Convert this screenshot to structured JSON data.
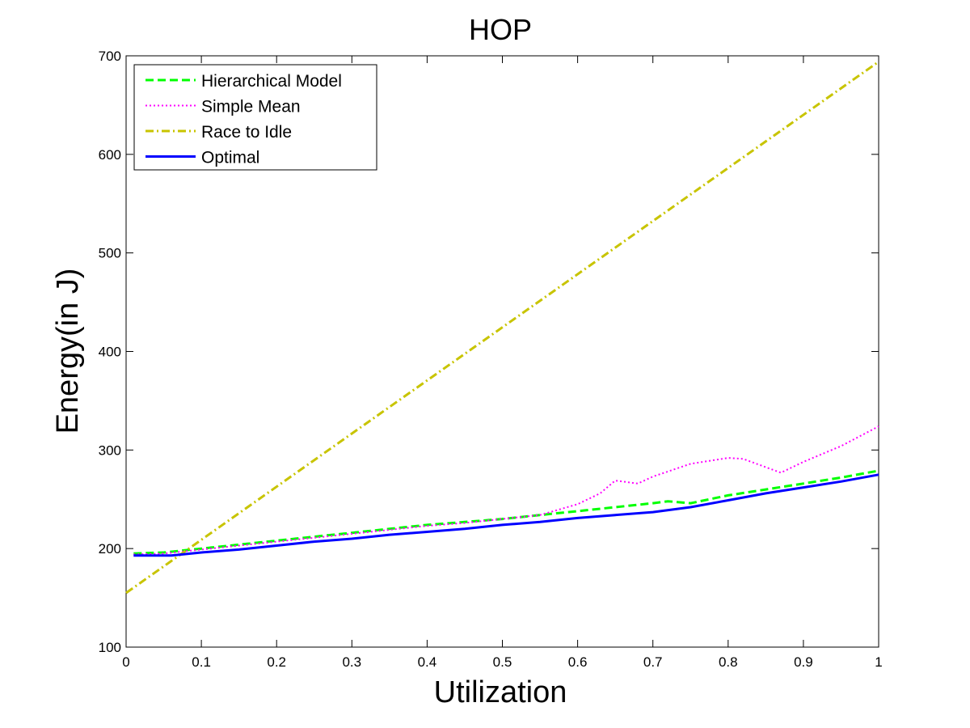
{
  "chart_data": {
    "type": "line",
    "title": "HOP",
    "xlabel": "Utilization",
    "ylabel": "Energy(in J)",
    "xlim": [
      0,
      1
    ],
    "ylim": [
      100,
      700
    ],
    "xticks": [
      0,
      0.1,
      0.2,
      0.3,
      0.4,
      0.5,
      0.6,
      0.7,
      0.8,
      0.9,
      1
    ],
    "xtick_labels": [
      "0",
      "0.1",
      "0.2",
      "0.3",
      "0.4",
      "0.5",
      "0.6",
      "0.7",
      "0.8",
      "0.9",
      "1"
    ],
    "yticks": [
      100,
      200,
      300,
      400,
      500,
      600,
      700
    ],
    "ytick_labels": [
      "100",
      "200",
      "300",
      "400",
      "500",
      "600",
      "700"
    ],
    "grid": false,
    "legend_position": "top-left",
    "series": [
      {
        "name": "Hierarchical Model",
        "color": "#00ff00",
        "style": "dashed",
        "x": [
          0.01,
          0.05,
          0.1,
          0.15,
          0.2,
          0.25,
          0.3,
          0.35,
          0.4,
          0.45,
          0.5,
          0.55,
          0.6,
          0.65,
          0.7,
          0.72,
          0.75,
          0.8,
          0.85,
          0.9,
          0.95,
          1.0
        ],
        "y": [
          195,
          196,
          200,
          204,
          208,
          212,
          216,
          220,
          224,
          227,
          230,
          234,
          238,
          242,
          246,
          248,
          246,
          254,
          260,
          266,
          272,
          279
        ]
      },
      {
        "name": "Simple Mean",
        "color": "#ff00ff",
        "style": "dotted",
        "x": [
          0.01,
          0.05,
          0.1,
          0.15,
          0.2,
          0.25,
          0.3,
          0.35,
          0.4,
          0.45,
          0.5,
          0.55,
          0.6,
          0.63,
          0.65,
          0.68,
          0.7,
          0.75,
          0.8,
          0.82,
          0.87,
          0.9,
          0.95,
          1.0
        ],
        "y": [
          194,
          195,
          199,
          203,
          207,
          211,
          215,
          219,
          223,
          226,
          230,
          234,
          245,
          256,
          269,
          266,
          273,
          286,
          292,
          291,
          277,
          288,
          304,
          324
        ]
      },
      {
        "name": "Race to Idle",
        "color": "#c8c400",
        "style": "dashdot",
        "x": [
          0.0,
          1.0
        ],
        "y": [
          155,
          694
        ]
      },
      {
        "name": "Optimal",
        "color": "#0000ff",
        "style": "solid",
        "x": [
          0.01,
          0.06,
          0.1,
          0.15,
          0.2,
          0.25,
          0.3,
          0.35,
          0.4,
          0.45,
          0.5,
          0.55,
          0.6,
          0.65,
          0.7,
          0.75,
          0.8,
          0.85,
          0.9,
          0.95,
          1.0
        ],
        "y": [
          193,
          193,
          196,
          199,
          203,
          207,
          210,
          214,
          217,
          220,
          224,
          227,
          231,
          234,
          237,
          242,
          249,
          256,
          262,
          268,
          275
        ]
      }
    ]
  }
}
